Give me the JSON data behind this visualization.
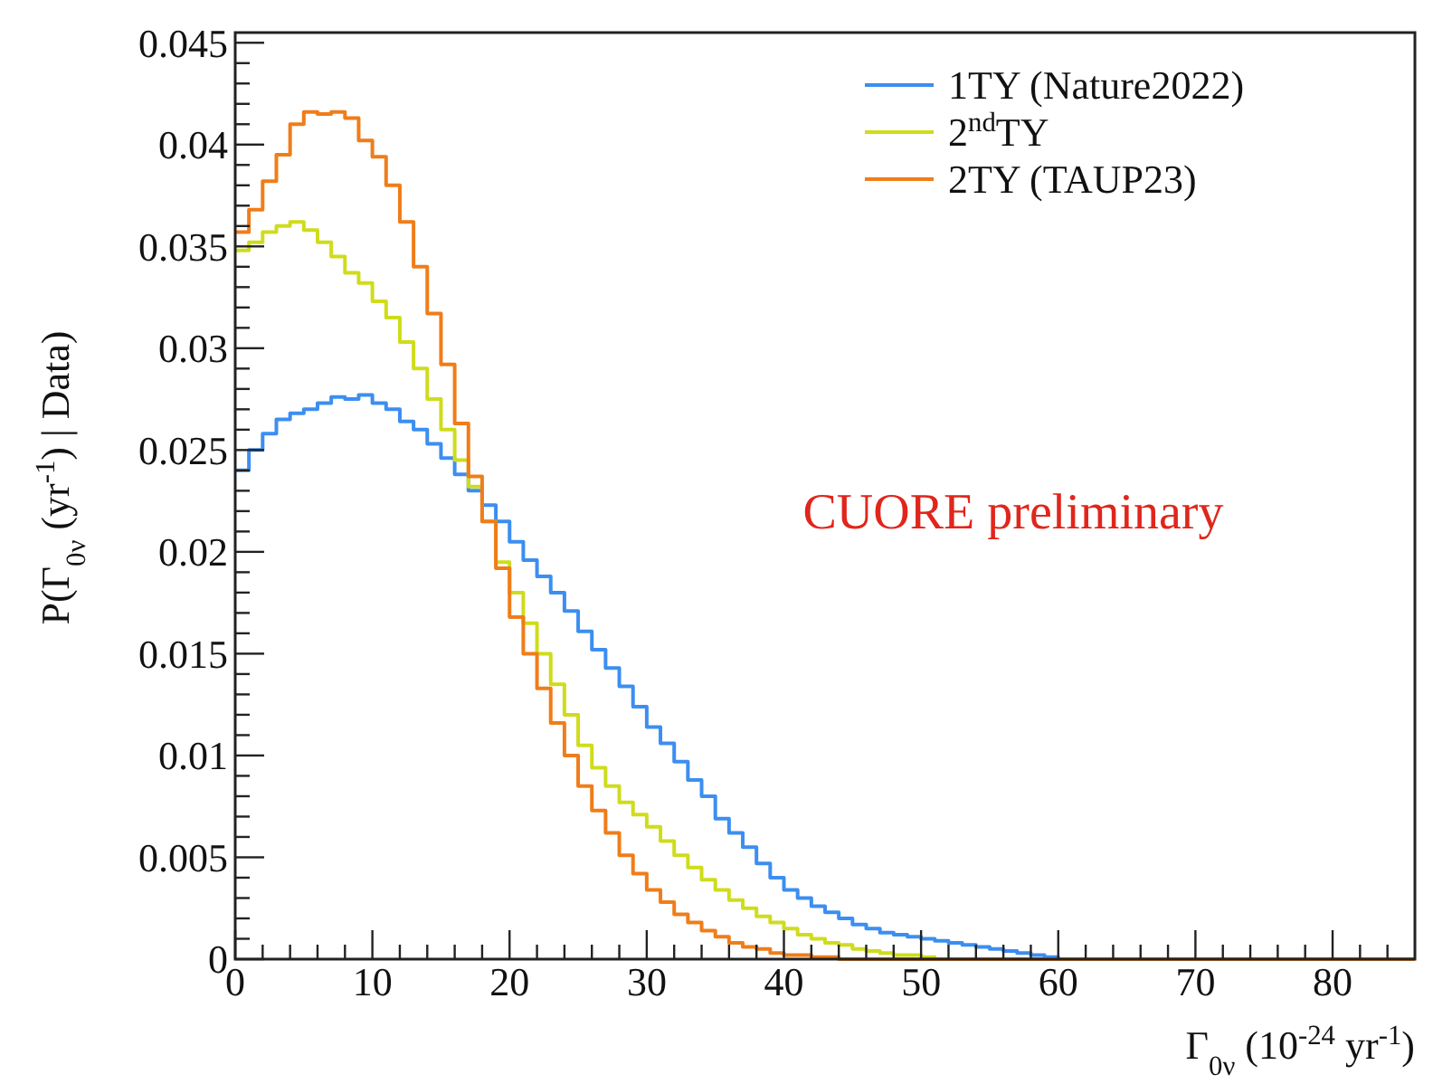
{
  "chart_data": {
    "type": "histogram",
    "xlabel": "Γ$_{0ν}$ (10$^{-24}$ yr$^{-1}$)",
    "ylabel": "P(Γ$_{0ν}$ (yr$^{-1}$) | Data)",
    "annotations": [
      "CUORE preliminary"
    ],
    "bins": [
      0,
      1,
      2,
      3,
      4,
      5,
      6,
      7,
      8,
      9,
      10,
      11,
      12,
      13,
      14,
      15,
      16,
      17,
      18,
      19,
      20,
      21,
      22,
      23,
      24,
      25,
      26,
      27,
      28,
      29,
      30,
      31,
      32,
      33,
      34,
      35,
      36,
      37,
      38,
      39,
      40,
      41,
      42,
      43,
      44,
      45,
      46,
      47,
      48,
      49,
      50,
      51,
      52,
      53,
      54,
      55,
      56,
      57,
      58,
      59,
      60,
      61,
      62,
      63,
      64,
      65,
      66,
      67,
      68,
      69,
      70,
      71,
      72,
      73,
      74,
      75,
      76,
      77,
      78,
      79,
      80,
      81,
      82,
      83,
      84,
      85,
      86
    ],
    "series": [
      {
        "name": "1TY (Nature2022)",
        "color": "#3c8ef0",
        "values": [
          0.024,
          0.025,
          0.0258,
          0.0265,
          0.0268,
          0.027,
          0.0273,
          0.0276,
          0.0275,
          0.0277,
          0.0273,
          0.027,
          0.0264,
          0.026,
          0.0253,
          0.0246,
          0.0238,
          0.023,
          0.0223,
          0.0215,
          0.0205,
          0.0196,
          0.0188,
          0.018,
          0.0171,
          0.0161,
          0.0152,
          0.0143,
          0.0134,
          0.0124,
          0.0114,
          0.0106,
          0.0097,
          0.0088,
          0.008,
          0.0069,
          0.0062,
          0.0055,
          0.0047,
          0.004,
          0.0034,
          0.003,
          0.0026,
          0.0023,
          0.002,
          0.0017,
          0.0015,
          0.0013,
          0.0012,
          0.0011,
          0.001,
          0.0009,
          0.0008,
          0.0007,
          0.0006,
          0.0005,
          0.0004,
          0.0003,
          0.0002,
          0.0001,
          0,
          0,
          0,
          0,
          0,
          0,
          0,
          0,
          0,
          0,
          0,
          0,
          0,
          0,
          0,
          0,
          0,
          0,
          0,
          0,
          0,
          0,
          0,
          0,
          0,
          0
        ]
      },
      {
        "name": "2$^{nd}$TY",
        "color": "#cfdc1c",
        "values": [
          0.0348,
          0.0352,
          0.0357,
          0.036,
          0.0362,
          0.0358,
          0.0352,
          0.0345,
          0.0337,
          0.0332,
          0.0323,
          0.0315,
          0.0303,
          0.029,
          0.0275,
          0.026,
          0.0245,
          0.0232,
          0.0215,
          0.0195,
          0.018,
          0.0165,
          0.015,
          0.0135,
          0.012,
          0.0105,
          0.0094,
          0.0085,
          0.0077,
          0.0071,
          0.0065,
          0.0058,
          0.0051,
          0.0045,
          0.0039,
          0.0034,
          0.0029,
          0.0025,
          0.0021,
          0.0018,
          0.0015,
          0.0012,
          0.001,
          0.0008,
          0.0007,
          0.0005,
          0.0004,
          0.0003,
          0.0002,
          0.0002,
          0.0001,
          0,
          0,
          0,
          0,
          0,
          0,
          0,
          0,
          0,
          0,
          0,
          0,
          0,
          0,
          0,
          0,
          0,
          0,
          0,
          0,
          0,
          0,
          0,
          0,
          0,
          0,
          0,
          0,
          0,
          0,
          0,
          0,
          0,
          0,
          0
        ]
      },
      {
        "name": "2TY (TAUP23)",
        "color": "#ef7d1a",
        "values": [
          0.0357,
          0.0368,
          0.0382,
          0.0395,
          0.041,
          0.0416,
          0.0415,
          0.0416,
          0.0413,
          0.0402,
          0.0394,
          0.038,
          0.0362,
          0.034,
          0.0317,
          0.0292,
          0.0263,
          0.0237,
          0.0215,
          0.0192,
          0.0168,
          0.015,
          0.0133,
          0.0116,
          0.01,
          0.0085,
          0.0073,
          0.0062,
          0.0051,
          0.0042,
          0.0034,
          0.0028,
          0.0022,
          0.0018,
          0.0014,
          0.0011,
          0.0008,
          0.0006,
          0.0005,
          0.0003,
          0.0002,
          0.0002,
          0.0001,
          0.0001,
          0,
          0,
          0,
          0,
          0,
          0,
          0,
          0,
          0,
          0,
          0,
          0,
          0,
          0,
          0,
          0,
          0,
          0,
          0,
          0,
          0,
          0,
          0,
          0,
          0,
          0,
          0,
          0,
          0,
          0,
          0,
          0,
          0,
          0,
          0,
          0,
          0,
          0,
          0,
          0,
          0,
          0
        ]
      }
    ],
    "xlim": [
      0,
      86
    ],
    "ylim": [
      0,
      0.0455
    ],
    "xticks": [
      0,
      {
        "value": 2,
        "label": null
      },
      {
        "value": 4,
        "label": null
      },
      {
        "value": 6,
        "label": null
      },
      {
        "value": 8,
        "label": null
      },
      10,
      {
        "value": 12,
        "label": null
      },
      {
        "value": 14,
        "label": null
      },
      {
        "value": 16,
        "label": null
      },
      {
        "value": 18,
        "label": null
      },
      20,
      {
        "value": 22,
        "label": null
      },
      {
        "value": 24,
        "label": null
      },
      {
        "value": 26,
        "label": null
      },
      {
        "value": 28,
        "label": null
      },
      30,
      {
        "value": 32,
        "label": null
      },
      {
        "value": 34,
        "label": null
      },
      {
        "value": 36,
        "label": null
      },
      {
        "value": 38,
        "label": null
      },
      40,
      {
        "value": 42,
        "label": null
      },
      {
        "value": 44,
        "label": null
      },
      {
        "value": 46,
        "label": null
      },
      {
        "value": 48,
        "label": null
      },
      50,
      {
        "value": 52,
        "label": null
      },
      {
        "value": 54,
        "label": null
      },
      {
        "value": 56,
        "label": null
      },
      {
        "value": 58,
        "label": null
      },
      60,
      {
        "value": 62,
        "label": null
      },
      {
        "value": 64,
        "label": null
      },
      {
        "value": 66,
        "label": null
      },
      {
        "value": 68,
        "label": null
      },
      70,
      {
        "value": 72,
        "label": null
      },
      {
        "value": 74,
        "label": null
      },
      {
        "value": 76,
        "label": null
      },
      {
        "value": 78,
        "label": null
      },
      80,
      {
        "value": 82,
        "label": null
      },
      {
        "value": 84,
        "label": null
      }
    ],
    "yticks": [
      0,
      {
        "value": 0.001,
        "label": null
      },
      {
        "value": 0.002,
        "label": null
      },
      {
        "value": 0.003,
        "label": null
      },
      {
        "value": 0.004,
        "label": null
      },
      0.005,
      {
        "value": 0.006,
        "label": null
      },
      {
        "value": 0.007,
        "label": null
      },
      {
        "value": 0.008,
        "label": null
      },
      {
        "value": 0.009,
        "label": null
      },
      0.01,
      {
        "value": 0.011,
        "label": null
      },
      {
        "value": 0.012,
        "label": null
      },
      {
        "value": 0.013,
        "label": null
      },
      {
        "value": 0.014,
        "label": null
      },
      0.015,
      {
        "value": 0.016,
        "label": null
      },
      {
        "value": 0.017,
        "label": null
      },
      {
        "value": 0.018,
        "label": null
      },
      {
        "value": 0.019,
        "label": null
      },
      0.02,
      {
        "value": 0.021,
        "label": null
      },
      {
        "value": 0.022,
        "label": null
      },
      {
        "value": 0.023,
        "label": null
      },
      {
        "value": 0.024,
        "label": null
      },
      0.025,
      {
        "value": 0.026,
        "label": null
      },
      {
        "value": 0.027,
        "label": null
      },
      {
        "value": 0.028,
        "label": null
      },
      {
        "value": 0.029,
        "label": null
      },
      0.03,
      {
        "value": 0.031,
        "label": null
      },
      {
        "value": 0.032,
        "label": null
      },
      {
        "value": 0.033,
        "label": null
      },
      {
        "value": 0.034,
        "label": null
      },
      0.035,
      {
        "value": 0.036,
        "label": null
      },
      {
        "value": 0.037,
        "label": null
      },
      {
        "value": 0.038,
        "label": null
      },
      {
        "value": 0.039,
        "label": null
      },
      0.04,
      {
        "value": 0.041,
        "label": null
      },
      {
        "value": 0.042,
        "label": null
      },
      {
        "value": 0.043,
        "label": null
      },
      {
        "value": 0.044,
        "label": null
      },
      0.045
    ],
    "grid": false,
    "legend": "top right"
  }
}
